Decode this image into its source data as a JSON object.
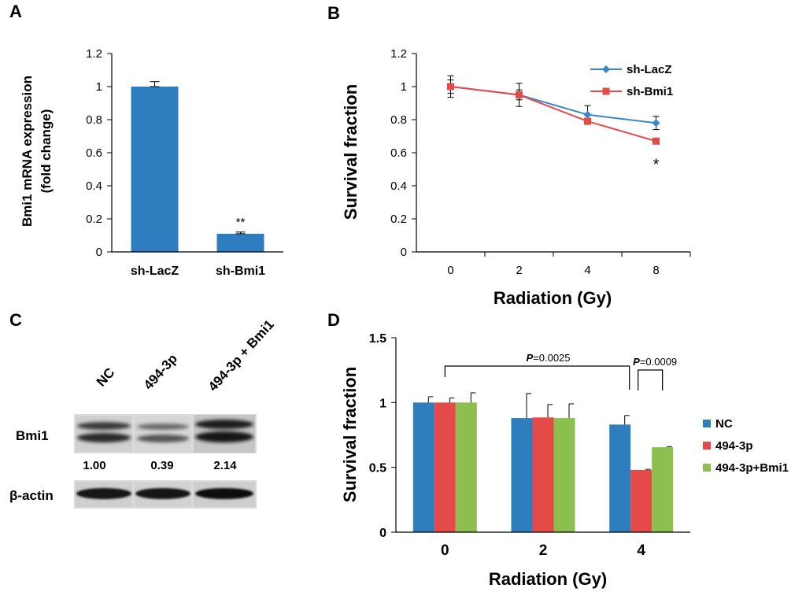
{
  "panels": {
    "A": "A",
    "B": "B",
    "C": "C",
    "D": "D"
  },
  "colors": {
    "blue": "#2e7ebf",
    "red": "#e34a48",
    "green": "#8cbf4e",
    "lineBlue": "#3a87c8",
    "lineRed": "#e34a48"
  },
  "chart_data": [
    {
      "panel": "A",
      "type": "bar",
      "categories": [
        "sh-LacZ",
        "sh-Bmi1"
      ],
      "values": [
        1.0,
        0.11
      ],
      "errors": [
        0.03,
        0.01
      ],
      "significance": [
        "",
        "**"
      ],
      "ylabel_line1": "Bmi1 mRNA expression",
      "ylabel_line2": "(fold change)",
      "ylim": [
        0,
        1.2
      ],
      "yticks": [
        0,
        0.2,
        0.4,
        0.6,
        0.8,
        1,
        1.2
      ],
      "ytick_labels": [
        "0",
        "0.2",
        "0.4",
        "0.6",
        "0.8",
        "1",
        "1.2"
      ]
    },
    {
      "panel": "B",
      "type": "line",
      "categories": [
        "0",
        "2",
        "4",
        "8"
      ],
      "series": [
        {
          "name": "sh-LacZ",
          "values": [
            1.0,
            0.95,
            0.83,
            0.78
          ],
          "errors": [
            0.065,
            0.07,
            0.055,
            0.04
          ]
        },
        {
          "name": "sh-Bmi1",
          "values": [
            1.0,
            0.95,
            0.79,
            0.67
          ],
          "errors": [
            0.04,
            0.03,
            0.015,
            0.01
          ]
        }
      ],
      "annotations": [
        {
          "category": "8",
          "text": "*"
        }
      ],
      "xlabel": "Radiation (Gy)",
      "ylabel": "Survival fraction",
      "ylim": [
        0,
        1.2
      ],
      "yticks": [
        0,
        0.2,
        0.4,
        0.6,
        0.8,
        1,
        1.2
      ],
      "ytick_labels": [
        "0",
        "0.2",
        "0.4",
        "0.6",
        "0.8",
        "1",
        "1.2"
      ],
      "legend_position": "top-right"
    },
    {
      "panel": "D",
      "type": "bar",
      "categories": [
        "0",
        "2",
        "4"
      ],
      "series": [
        {
          "name": "NC",
          "values": [
            1.0,
            0.88,
            0.83
          ],
          "errors": [
            0.045,
            0.19,
            0.07
          ]
        },
        {
          "name": "494-3p",
          "values": [
            1.0,
            0.885,
            0.48
          ],
          "errors": [
            0.035,
            0.1,
            0.005
          ]
        },
        {
          "name": "494-3p+Bmi1",
          "values": [
            1.0,
            0.88,
            0.655
          ],
          "errors": [
            0.075,
            0.11,
            0.005
          ]
        }
      ],
      "xlabel": "Radiation (Gy)",
      "ylabel": "Survival fraction",
      "ylim": [
        0,
        1.5
      ],
      "yticks": [
        0,
        0.5,
        1,
        1.5
      ],
      "ytick_labels": [
        "0",
        "0.5",
        "1",
        "1.5"
      ],
      "legend_position": "right",
      "brackets": [
        {
          "p_label": "P",
          "p_value": "=0.0025",
          "from": "0:NC",
          "to": "4:NC"
        },
        {
          "p_label": "P",
          "p_value": "=0.0009",
          "from": "4:494-3p",
          "to": "4:494-3p+Bmi1"
        }
      ]
    }
  ],
  "blot": {
    "lanes": [
      "NC",
      "494-3p",
      "494-3p + Bmi1"
    ],
    "rows": [
      "Bmi1",
      "β-actin"
    ],
    "quantification": [
      "1.00",
      "0.39",
      "2.14"
    ]
  }
}
